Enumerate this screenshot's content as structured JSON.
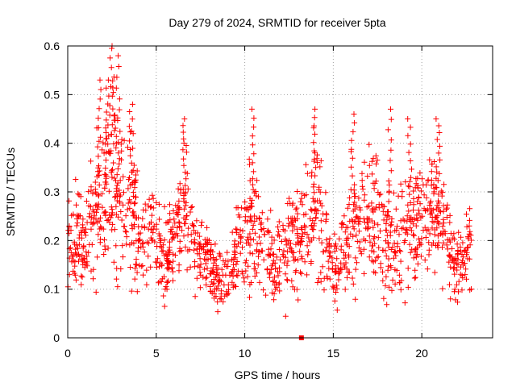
{
  "chart_data": {
    "type": "scatter",
    "title": "Day 279 of 2024, SRMTID for receiver 5pta",
    "xlabel": "GPS time / hours",
    "ylabel": "SRMTID / TECUs",
    "xlim": [
      0,
      24
    ],
    "ylim": [
      0,
      0.6
    ],
    "xticks": [
      0,
      5,
      10,
      15,
      20
    ],
    "xtick_labels": [
      "0",
      "5",
      "10",
      "15",
      "20"
    ],
    "yticks": [
      0,
      0.1,
      0.2,
      0.3,
      0.4,
      0.5,
      0.6
    ],
    "ytick_labels": [
      "0",
      "0.1",
      "0.2",
      "0.3",
      "0.4",
      "0.5",
      "0.6"
    ],
    "grid": true,
    "marker": "+",
    "marker_color": "#ff0000",
    "outlier": {
      "x": 13.2,
      "y": 0.0,
      "marker": "square"
    },
    "profile": [
      {
        "x": 0.0,
        "y": 0.2,
        "spread": 0.06
      },
      {
        "x": 1.0,
        "y": 0.19,
        "spread": 0.07
      },
      {
        "x": 1.5,
        "y": 0.25,
        "spread": 0.1
      },
      {
        "x": 2.0,
        "y": 0.3,
        "spread": 0.12
      },
      {
        "x": 2.5,
        "y": 0.34,
        "spread": 0.14
      },
      {
        "x": 3.0,
        "y": 0.27,
        "spread": 0.12
      },
      {
        "x": 3.5,
        "y": 0.3,
        "spread": 0.1
      },
      {
        "x": 4.0,
        "y": 0.22,
        "spread": 0.07
      },
      {
        "x": 5.0,
        "y": 0.22,
        "spread": 0.06
      },
      {
        "x": 5.5,
        "y": 0.16,
        "spread": 0.06
      },
      {
        "x": 6.0,
        "y": 0.2,
        "spread": 0.07
      },
      {
        "x": 6.5,
        "y": 0.29,
        "spread": 0.09
      },
      {
        "x": 7.0,
        "y": 0.2,
        "spread": 0.06
      },
      {
        "x": 8.0,
        "y": 0.15,
        "spread": 0.05
      },
      {
        "x": 8.7,
        "y": 0.1,
        "spread": 0.05
      },
      {
        "x": 9.5,
        "y": 0.17,
        "spread": 0.06
      },
      {
        "x": 10.3,
        "y": 0.24,
        "spread": 0.09
      },
      {
        "x": 11.0,
        "y": 0.18,
        "spread": 0.06
      },
      {
        "x": 12.0,
        "y": 0.17,
        "spread": 0.06
      },
      {
        "x": 13.0,
        "y": 0.2,
        "spread": 0.07
      },
      {
        "x": 14.0,
        "y": 0.25,
        "spread": 0.09
      },
      {
        "x": 15.0,
        "y": 0.13,
        "spread": 0.05
      },
      {
        "x": 16.0,
        "y": 0.22,
        "spread": 0.08
      },
      {
        "x": 17.0,
        "y": 0.26,
        "spread": 0.09
      },
      {
        "x": 18.0,
        "y": 0.19,
        "spread": 0.08
      },
      {
        "x": 19.0,
        "y": 0.22,
        "spread": 0.08
      },
      {
        "x": 20.0,
        "y": 0.24,
        "spread": 0.09
      },
      {
        "x": 20.8,
        "y": 0.28,
        "spread": 0.09
      },
      {
        "x": 21.5,
        "y": 0.19,
        "spread": 0.06
      },
      {
        "x": 22.0,
        "y": 0.14,
        "spread": 0.05
      },
      {
        "x": 22.8,
        "y": 0.19,
        "spread": 0.05
      }
    ],
    "peaks": [
      {
        "x": 2.5,
        "y": 0.595
      },
      {
        "x": 2.85,
        "y": 0.58
      },
      {
        "x": 1.75,
        "y": 0.53
      },
      {
        "x": 2.2,
        "y": 0.53
      },
      {
        "x": 3.6,
        "y": 0.48
      },
      {
        "x": 6.6,
        "y": 0.45
      },
      {
        "x": 10.4,
        "y": 0.47
      },
      {
        "x": 13.95,
        "y": 0.47
      },
      {
        "x": 16.1,
        "y": 0.46
      },
      {
        "x": 18.2,
        "y": 0.47
      },
      {
        "x": 19.3,
        "y": 0.45
      },
      {
        "x": 20.9,
        "y": 0.45
      }
    ]
  }
}
